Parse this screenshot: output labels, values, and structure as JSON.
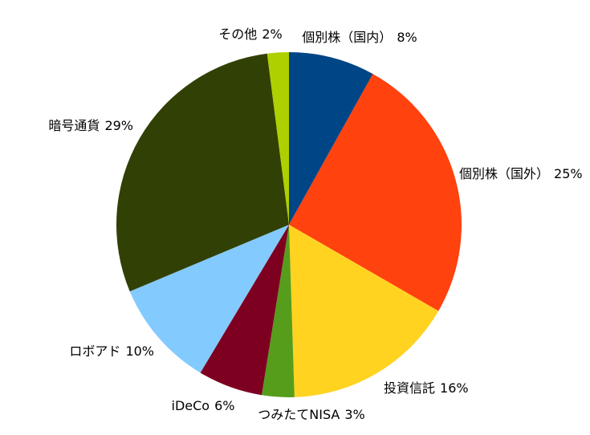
{
  "chart_data": {
    "type": "pie",
    "categories": [
      "個別株（国内）",
      "個別株（国外）",
      "投資信託",
      "つみたてNISA",
      "iDeCo",
      "ロボアド",
      "暗号通貨",
      "その他"
    ],
    "values": [
      8,
      25,
      16,
      3,
      6,
      10,
      29,
      2
    ],
    "value_labels": [
      "8%",
      "25%",
      "16%",
      "3%",
      "6%",
      "10%",
      "29%",
      "2%"
    ],
    "colors": [
      "#004586",
      "#ff420e",
      "#ffd320",
      "#579d1c",
      "#7e0021",
      "#83caff",
      "#314004",
      "#aecf00"
    ]
  }
}
